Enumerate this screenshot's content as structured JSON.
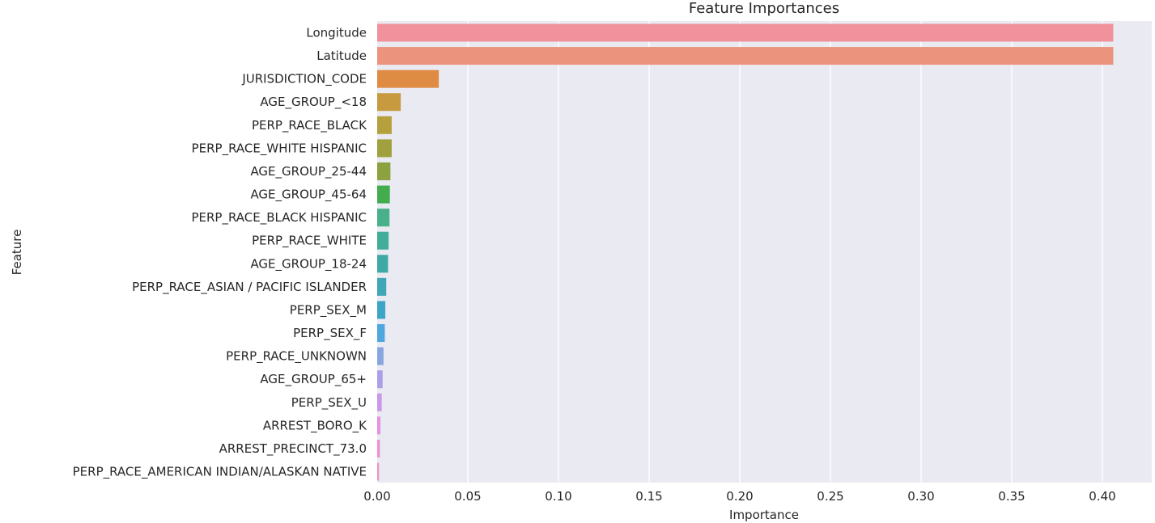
{
  "chart_data": {
    "type": "bar",
    "orientation": "horizontal",
    "title": "Feature Importances",
    "xlabel": "Importance",
    "ylabel": "Feature",
    "xlim": [
      0,
      0.425
    ],
    "xticks": [
      0.0,
      0.05,
      0.1,
      0.15,
      0.2,
      0.25,
      0.3,
      0.35,
      0.4
    ],
    "xtick_labels": [
      "0.00",
      "0.05",
      "0.10",
      "0.15",
      "0.20",
      "0.25",
      "0.30",
      "0.35",
      "0.40"
    ],
    "grid": true,
    "background_color": "#eaeaf2",
    "categories": [
      "Longitude",
      "Latitude",
      "JURISDICTION_CODE",
      "AGE_GROUP_<18",
      "PERP_RACE_BLACK",
      "PERP_RACE_WHITE HISPANIC",
      "AGE_GROUP_25-44",
      "AGE_GROUP_45-64",
      "PERP_RACE_BLACK HISPANIC",
      "PERP_RACE_WHITE",
      "AGE_GROUP_18-24",
      "PERP_RACE_ASIAN / PACIFIC ISLANDER",
      "PERP_SEX_M",
      "PERP_SEX_F",
      "PERP_RACE_UNKNOWN",
      "AGE_GROUP_65+",
      "PERP_SEX_U",
      "ARREST_BORO_K",
      "ARREST_PRECINCT_73.0",
      "PERP_RACE_AMERICAN INDIAN/ALASKAN NATIVE"
    ],
    "values": [
      0.406,
      0.406,
      0.034,
      0.013,
      0.008,
      0.008,
      0.0073,
      0.007,
      0.0068,
      0.0063,
      0.006,
      0.005,
      0.0045,
      0.0042,
      0.0035,
      0.003,
      0.0025,
      0.0018,
      0.0015,
      0.001
    ],
    "colors": [
      "#f0919c",
      "#eb937c",
      "#de8c44",
      "#c89a3f",
      "#b6a03e",
      "#a0a13e",
      "#8ca13f",
      "#43ac4f",
      "#48b08a",
      "#40ae98",
      "#3fa9a5",
      "#40a7b6",
      "#3da6c7",
      "#4ea7dd",
      "#89a5e0",
      "#ac9fe7",
      "#c998ea",
      "#e491e6",
      "#ef8fd0",
      "#f291bd"
    ]
  }
}
